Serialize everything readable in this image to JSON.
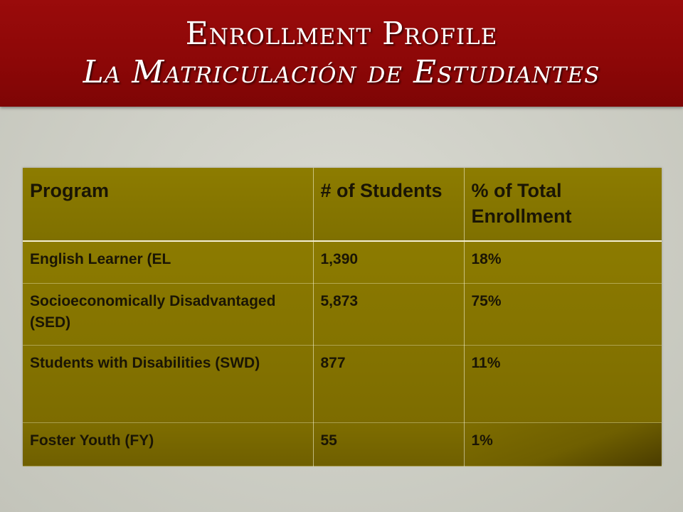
{
  "slide": {
    "title_line1": "Enrollment Profile",
    "title_line2": "La Matriculación de Estudiantes"
  },
  "table": {
    "headers": [
      "Program",
      "# of Students",
      "% of Total Enrollment"
    ],
    "rows": [
      [
        "English Learner (EL",
        "1,390",
        "18%"
      ],
      [
        "Socioeconomically Disadvantaged (SED)",
        "5,873",
        "75%"
      ],
      [
        "Students with Disabilities (SWD)",
        "877",
        "11%"
      ],
      [
        "Foster Youth (FY)",
        "55",
        "1%"
      ]
    ]
  },
  "colors": {
    "title_band": "#8c0707",
    "table_fill": "#857400",
    "background": "#cfd0c7"
  }
}
